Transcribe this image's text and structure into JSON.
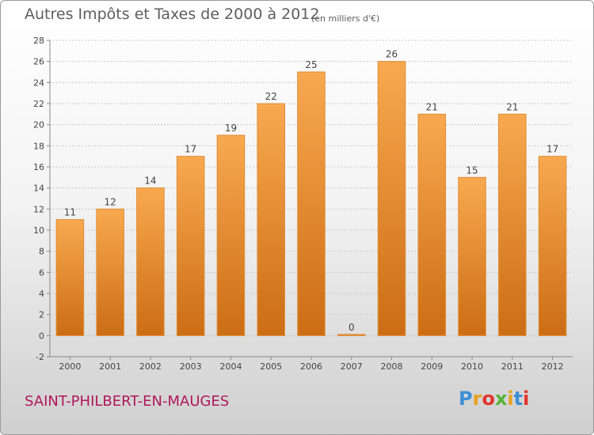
{
  "header": {
    "title": "Autres Impôts et Taxes de 2000 à 2012",
    "unit": "(en milliers d'€)"
  },
  "footer": {
    "commune": "SAINT-PHILBERT-EN-MAUGES",
    "logo_letters": [
      {
        "ch": "P",
        "color": "#3b8fd6"
      },
      {
        "ch": "r",
        "color": "#e8a020"
      },
      {
        "ch": "o",
        "color": "#e2352b"
      },
      {
        "ch": "x",
        "color": "#56b237"
      },
      {
        "ch": "i",
        "color": "#e8a020"
      },
      {
        "ch": "t",
        "color": "#3b8fd6"
      },
      {
        "ch": "i",
        "color": "#e2352b"
      }
    ]
  },
  "colors": {
    "bar_top": "#f8a950",
    "bar_bottom": "#cc6d14",
    "bar_stroke": "#e08a30",
    "commune": "#b0185c"
  },
  "chart_data": {
    "type": "bar",
    "categories": [
      "2000",
      "2001",
      "2002",
      "2003",
      "2004",
      "2005",
      "2006",
      "2007",
      "2008",
      "2009",
      "2010",
      "2011",
      "2012"
    ],
    "values": [
      11,
      12,
      14,
      17,
      19,
      22,
      25,
      0,
      26,
      21,
      15,
      21,
      17
    ],
    "ylim": [
      -2,
      28
    ],
    "yticks": [
      -2,
      0,
      2,
      4,
      6,
      8,
      10,
      12,
      14,
      16,
      18,
      20,
      22,
      24,
      26,
      28
    ],
    "grid": true
  }
}
